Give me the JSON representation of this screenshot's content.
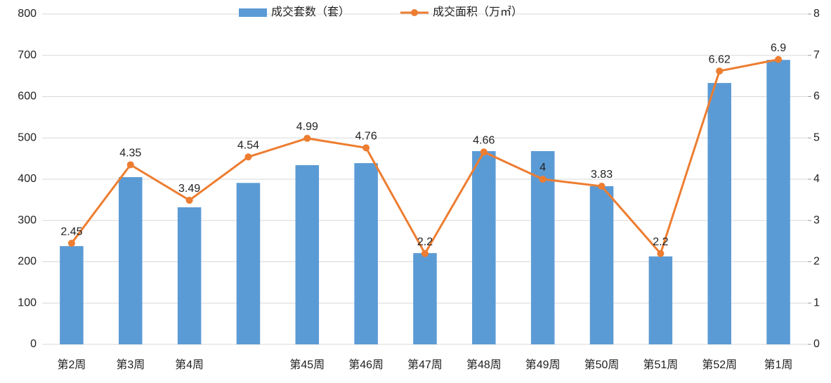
{
  "chart_data": {
    "type": "bar-line",
    "categories": [
      "第2周",
      "第3周",
      "第4周",
      null,
      "第45周",
      "第46周",
      "第47周",
      "第48周",
      "第49周",
      "第50周",
      "第51周",
      "第52周",
      "第1周"
    ],
    "series": [
      {
        "name": "成交套数（套）",
        "color": "#5b9bd5",
        "type": "bar",
        "values": [
          238,
          405,
          332,
          391,
          434,
          439,
          221,
          468,
          468,
          383,
          213,
          633,
          689
        ]
      },
      {
        "name": "成交面积（万㎡）",
        "color": "#ed7d31",
        "type": "line",
        "axis": "y2",
        "values": [
          2.45,
          4.35,
          3.49,
          4.54,
          4.99,
          4.76,
          2.2,
          4.66,
          4.0,
          3.83,
          2.2,
          6.62,
          6.9
        ]
      }
    ],
    "ylim": [
      0,
      800
    ],
    "yticks": [
      0,
      100,
      200,
      300,
      400,
      500,
      600,
      700,
      800
    ],
    "y2lim": [
      0,
      8
    ],
    "y2ticks": [
      0,
      1,
      2,
      3,
      4,
      5,
      6,
      7,
      8
    ],
    "grid": true
  }
}
